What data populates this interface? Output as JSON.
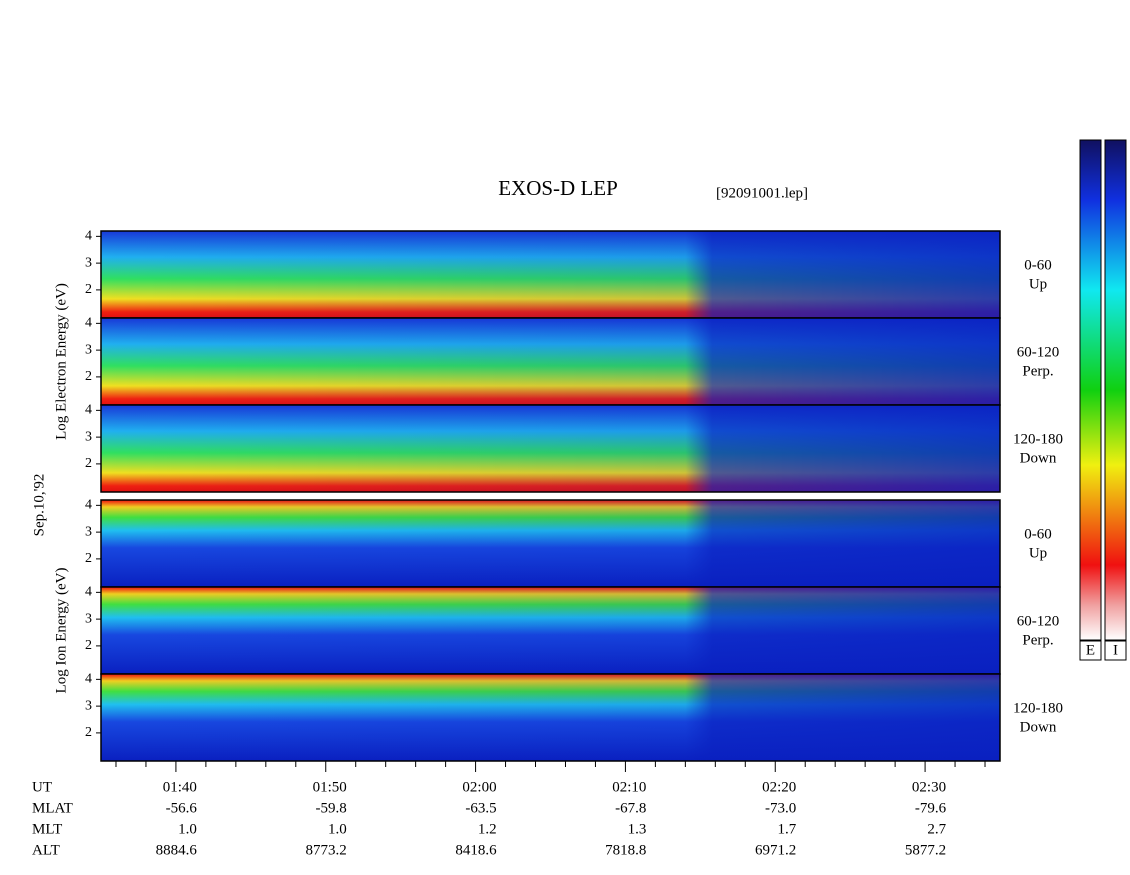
{
  "chart_data": {
    "type": "spectrogram",
    "title": "EXOS-D LEP",
    "file": "[92091001.lep]",
    "date": "Sep.10,'92",
    "groups": [
      {
        "ylabel": "Log Electron Energy (eV)",
        "panels": [
          {
            "label": [
              "0-60",
              "Up"
            ]
          },
          {
            "label": [
              "60-120",
              "Perp."
            ]
          },
          {
            "label": [
              "120-180",
              "Down"
            ]
          }
        ]
      },
      {
        "ylabel": "Log Ion Energy (eV)",
        "panels": [
          {
            "label": [
              "0-60",
              "Up"
            ]
          },
          {
            "label": [
              "60-120",
              "Perp."
            ]
          },
          {
            "label": [
              "120-180",
              "Down"
            ]
          }
        ]
      }
    ],
    "ylim": [
      0.95,
      4.2
    ],
    "yticks": [
      2,
      3,
      4
    ],
    "xlim": [
      95,
      155
    ],
    "xticks": [
      {
        "value": 100,
        "label": "01:40"
      },
      {
        "value": 110,
        "label": "01:50"
      },
      {
        "value": 120,
        "label": "02:00"
      },
      {
        "value": 130,
        "label": "02:10"
      },
      {
        "value": 140,
        "label": "02:20"
      },
      {
        "value": 150,
        "label": "02:30"
      }
    ],
    "xminorticks": [
      96,
      98,
      102,
      104,
      106,
      108,
      112,
      114,
      116,
      118,
      122,
      124,
      126,
      128,
      132,
      134,
      136,
      138,
      142,
      144,
      146,
      148,
      152,
      154
    ],
    "ut_label": "UT",
    "rows": [
      {
        "name": "MLAT",
        "values": [
          "-56.6",
          "-59.8",
          "-63.5",
          "-67.8",
          "-73.0",
          "-79.6"
        ]
      },
      {
        "name": "MLT",
        "values": [
          "1.0",
          "1.0",
          "1.2",
          "1.3",
          "1.7",
          "2.7"
        ]
      },
      {
        "name": "ALT",
        "values": [
          "8884.6",
          "8773.2",
          "8418.6",
          "7818.8",
          "6971.2",
          "5877.2"
        ]
      }
    ],
    "colorbars": [
      "E",
      "I"
    ]
  }
}
